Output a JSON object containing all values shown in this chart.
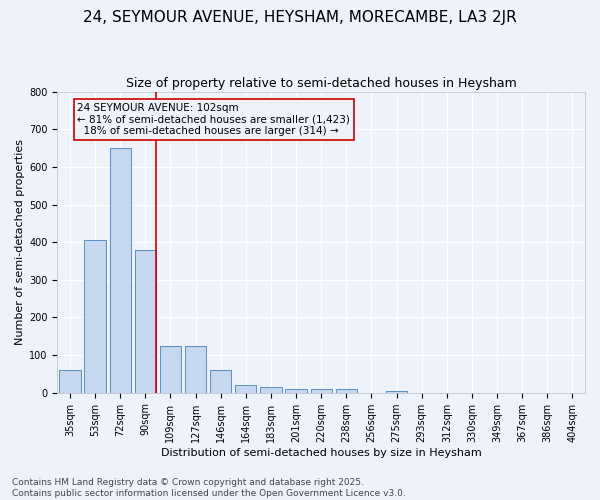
{
  "title": "24, SEYMOUR AVENUE, HEYSHAM, MORECAMBE, LA3 2JR",
  "subtitle": "Size of property relative to semi-detached houses in Heysham",
  "xlabel": "Distribution of semi-detached houses by size in Heysham",
  "ylabel": "Number of semi-detached properties",
  "categories": [
    "35sqm",
    "53sqm",
    "72sqm",
    "90sqm",
    "109sqm",
    "127sqm",
    "146sqm",
    "164sqm",
    "183sqm",
    "201sqm",
    "220sqm",
    "238sqm",
    "256sqm",
    "275sqm",
    "293sqm",
    "312sqm",
    "330sqm",
    "349sqm",
    "367sqm",
    "386sqm",
    "404sqm"
  ],
  "values": [
    60,
    405,
    650,
    380,
    125,
    125,
    60,
    20,
    15,
    10,
    10,
    10,
    0,
    5,
    0,
    0,
    0,
    0,
    0,
    0,
    0
  ],
  "bar_color": "#c5d8f0",
  "bar_edge_color": "#5a8fc2",
  "highlight_line_color": "#cc0000",
  "annotation_text": "24 SEYMOUR AVENUE: 102sqm\n← 81% of semi-detached houses are smaller (1,423)\n  18% of semi-detached houses are larger (314) →",
  "annotation_box_color": "#cc0000",
  "ylim": [
    0,
    800
  ],
  "yticks": [
    0,
    100,
    200,
    300,
    400,
    500,
    600,
    700,
    800
  ],
  "footer_line1": "Contains HM Land Registry data © Crown copyright and database right 2025.",
  "footer_line2": "Contains public sector information licensed under the Open Government Licence v3.0.",
  "bg_color": "#eef2fa",
  "grid_color": "#ffffff",
  "title_fontsize": 11,
  "subtitle_fontsize": 9,
  "axis_fontsize": 8,
  "tick_fontsize": 7,
  "footer_fontsize": 6.5,
  "ann_fontsize": 7.5
}
